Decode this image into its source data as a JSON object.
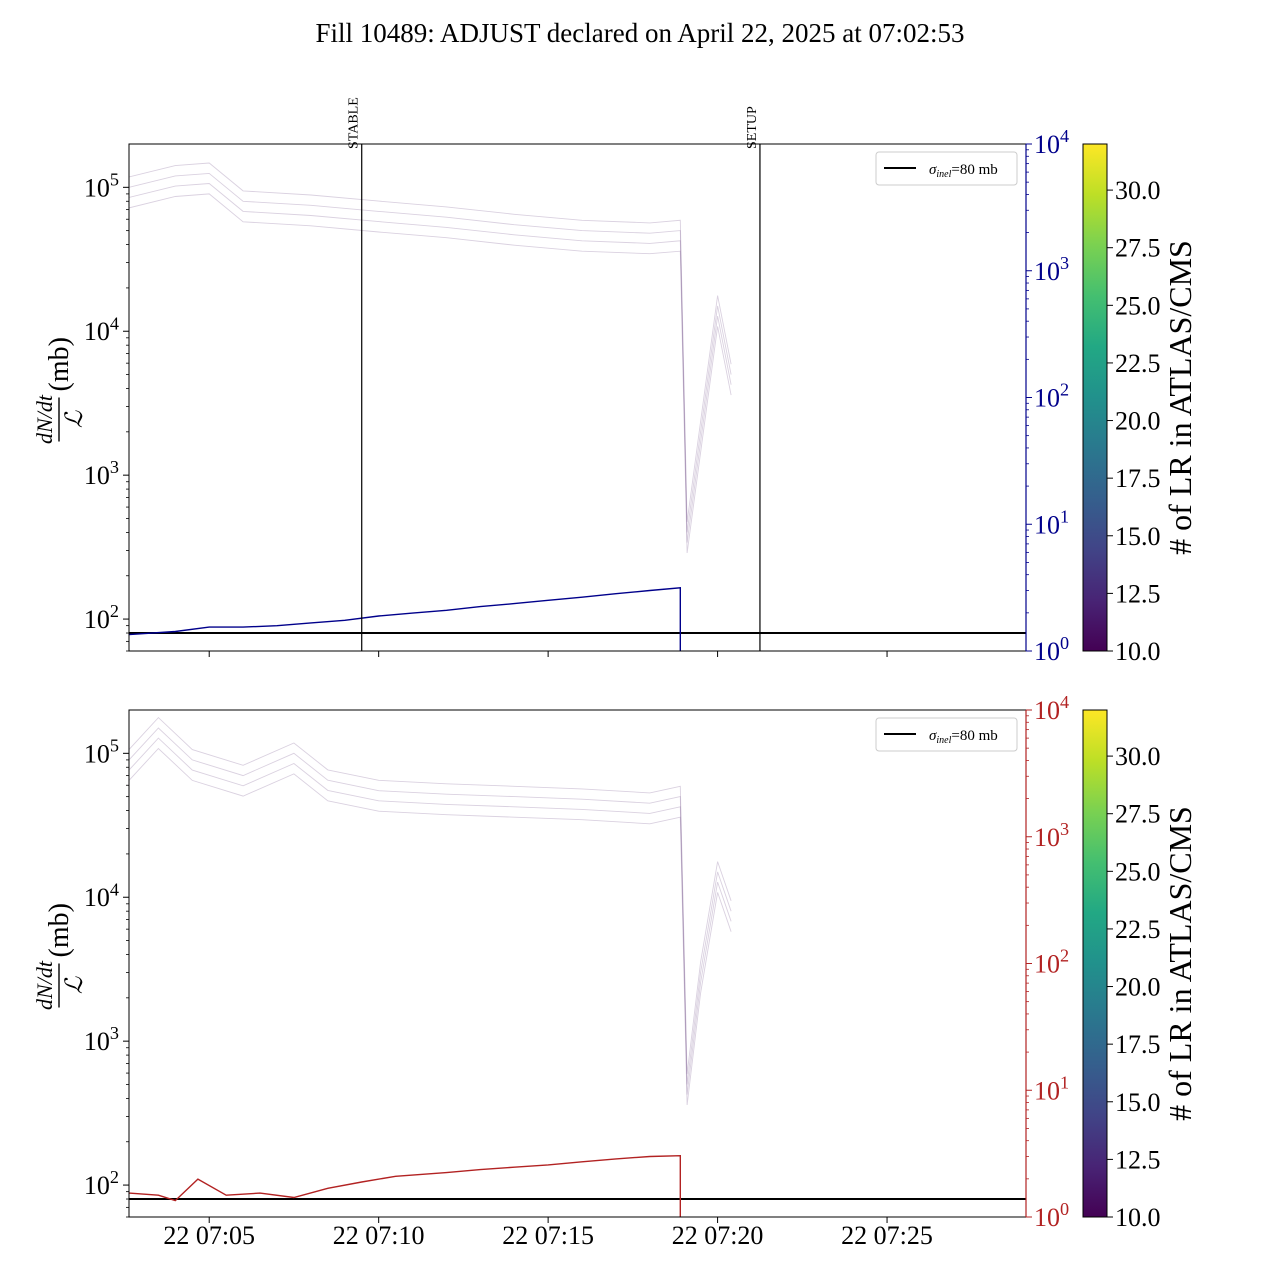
{
  "figure": {
    "title": "Fill 10489: ADJUST declared on April 22, 2025 at 07:02:53"
  },
  "colors": {
    "top_series": "#00008b",
    "bottom_series": "#b22222",
    "background_lines": "#7b5a8f",
    "reference_line": "#000000",
    "colorbar": [
      "#440154",
      "#482475",
      "#414487",
      "#355f8d",
      "#2a788e",
      "#21918c",
      "#22a884",
      "#44bf70",
      "#7ad151",
      "#bddf26",
      "#fde725"
    ]
  },
  "chart_data": [
    {
      "type": "line",
      "panel": "top",
      "ylabel_fraction_num": "dN/dt",
      "ylabel_fraction_den": "ℒ",
      "ylabel_unit": "(mb)",
      "y_scale": "log",
      "ylim": [
        60,
        200000
      ],
      "y_ticks": [
        {
          "base": "10",
          "exp": "2",
          "value": 100
        },
        {
          "base": "10",
          "exp": "3",
          "value": 1000
        },
        {
          "base": "10",
          "exp": "4",
          "value": 10000
        },
        {
          "base": "10",
          "exp": "5",
          "value": 100000
        }
      ],
      "right_axis": {
        "scale": "log",
        "ylim": [
          1,
          10000
        ],
        "ticks": [
          {
            "base": "10",
            "exp": "0",
            "value": 1
          },
          {
            "base": "10",
            "exp": "1",
            "value": 10
          },
          {
            "base": "10",
            "exp": "2",
            "value": 100
          },
          {
            "base": "10",
            "exp": "3",
            "value": 1000
          },
          {
            "base": "10",
            "exp": "4",
            "value": 10000
          }
        ],
        "color": "#00008b"
      },
      "xlim": [
        "07:02:38",
        "07:29:06"
      ],
      "x_tick_labels": [],
      "vlines": [
        {
          "label": "STABLE",
          "time": "07:09:30"
        },
        {
          "label": "SETUP",
          "time": "07:21:15"
        }
      ],
      "reference_line": {
        "value": 80
      },
      "legend": {
        "label_sym": "σ",
        "label_sub": "inel",
        "label_rest": "=80 mb",
        "position": "top-right"
      },
      "main_series": [
        {
          "time": "07:02:38",
          "value": 78
        },
        {
          "time": "07:04:00",
          "value": 82
        },
        {
          "time": "07:05:00",
          "value": 88
        },
        {
          "time": "07:06:00",
          "value": 88
        },
        {
          "time": "07:07:00",
          "value": 90
        },
        {
          "time": "07:08:00",
          "value": 94
        },
        {
          "time": "07:09:00",
          "value": 98
        },
        {
          "time": "07:10:00",
          "value": 105
        },
        {
          "time": "07:11:00",
          "value": 110
        },
        {
          "time": "07:12:00",
          "value": 115
        },
        {
          "time": "07:13:00",
          "value": 122
        },
        {
          "time": "07:14:00",
          "value": 128
        },
        {
          "time": "07:15:00",
          "value": 135
        },
        {
          "time": "07:16:00",
          "value": 142
        },
        {
          "time": "07:17:00",
          "value": 150
        },
        {
          "time": "07:18:00",
          "value": 158
        },
        {
          "time": "07:18:54",
          "value": 165
        }
      ],
      "background_series": [
        {
          "time": "07:02:38",
          "value": 100000
        },
        {
          "time": "07:04:00",
          "value": 120000
        },
        {
          "time": "07:05:00",
          "value": 125000
        },
        {
          "time": "07:06:00",
          "value": 80000
        },
        {
          "time": "07:08:00",
          "value": 75000
        },
        {
          "time": "07:10:00",
          "value": 68000
        },
        {
          "time": "07:12:00",
          "value": 62000
        },
        {
          "time": "07:14:00",
          "value": 55000
        },
        {
          "time": "07:16:00",
          "value": 50000
        },
        {
          "time": "07:18:00",
          "value": 48000
        },
        {
          "time": "07:18:54",
          "value": 50000
        },
        {
          "time": "07:19:06",
          "value": 400
        },
        {
          "time": "07:19:30",
          "value": 2000
        },
        {
          "time": "07:20:00",
          "value": 15000
        },
        {
          "time": "07:20:24",
          "value": 5000
        }
      ]
    },
    {
      "type": "line",
      "panel": "bottom",
      "ylabel_fraction_num": "dN/dt",
      "ylabel_fraction_den": "ℒ",
      "ylabel_unit": "(mb)",
      "y_scale": "log",
      "ylim": [
        60,
        200000
      ],
      "y_ticks": [
        {
          "base": "10",
          "exp": "2",
          "value": 100
        },
        {
          "base": "10",
          "exp": "3",
          "value": 1000
        },
        {
          "base": "10",
          "exp": "4",
          "value": 10000
        },
        {
          "base": "10",
          "exp": "5",
          "value": 100000
        }
      ],
      "right_axis": {
        "scale": "log",
        "ylim": [
          1,
          10000
        ],
        "ticks": [
          {
            "base": "10",
            "exp": "0",
            "value": 1
          },
          {
            "base": "10",
            "exp": "1",
            "value": 10
          },
          {
            "base": "10",
            "exp": "2",
            "value": 100
          },
          {
            "base": "10",
            "exp": "3",
            "value": 1000
          },
          {
            "base": "10",
            "exp": "4",
            "value": 10000
          }
        ],
        "color": "#b22222"
      },
      "xlim": [
        "07:02:38",
        "07:29:06"
      ],
      "x_tick_labels": [
        {
          "label": "22 07:05",
          "time": "07:05:00"
        },
        {
          "label": "22 07:10",
          "time": "07:10:00"
        },
        {
          "label": "22 07:15",
          "time": "07:15:00"
        },
        {
          "label": "22 07:20",
          "time": "07:20:00"
        },
        {
          "label": "22 07:25",
          "time": "07:25:00"
        }
      ],
      "vlines": [],
      "reference_line": {
        "value": 80
      },
      "legend": {
        "label_sym": "σ",
        "label_sub": "inel",
        "label_rest": "=80 mb",
        "position": "top-right"
      },
      "main_series": [
        {
          "time": "07:02:38",
          "value": 88
        },
        {
          "time": "07:03:30",
          "value": 85
        },
        {
          "time": "07:04:00",
          "value": 78
        },
        {
          "time": "07:04:40",
          "value": 110
        },
        {
          "time": "07:05:30",
          "value": 85
        },
        {
          "time": "07:06:30",
          "value": 88
        },
        {
          "time": "07:07:30",
          "value": 82
        },
        {
          "time": "07:08:30",
          "value": 95
        },
        {
          "time": "07:09:30",
          "value": 105
        },
        {
          "time": "07:10:30",
          "value": 115
        },
        {
          "time": "07:12:00",
          "value": 122
        },
        {
          "time": "07:13:00",
          "value": 128
        },
        {
          "time": "07:14:00",
          "value": 133
        },
        {
          "time": "07:15:00",
          "value": 138
        },
        {
          "time": "07:16:00",
          "value": 145
        },
        {
          "time": "07:17:00",
          "value": 152
        },
        {
          "time": "07:18:00",
          "value": 158
        },
        {
          "time": "07:18:54",
          "value": 160
        }
      ],
      "background_series": [
        {
          "time": "07:02:38",
          "value": 90000
        },
        {
          "time": "07:03:30",
          "value": 150000
        },
        {
          "time": "07:04:30",
          "value": 90000
        },
        {
          "time": "07:06:00",
          "value": 70000
        },
        {
          "time": "07:07:30",
          "value": 100000
        },
        {
          "time": "07:08:30",
          "value": 65000
        },
        {
          "time": "07:10:00",
          "value": 55000
        },
        {
          "time": "07:12:00",
          "value": 52000
        },
        {
          "time": "07:14:00",
          "value": 50000
        },
        {
          "time": "07:16:00",
          "value": 48000
        },
        {
          "time": "07:18:00",
          "value": 45000
        },
        {
          "time": "07:18:54",
          "value": 50000
        },
        {
          "time": "07:19:06",
          "value": 500
        },
        {
          "time": "07:19:30",
          "value": 3000
        },
        {
          "time": "07:20:00",
          "value": 15000
        },
        {
          "time": "07:20:24",
          "value": 8000
        }
      ]
    }
  ],
  "colorbars": [
    {
      "label": "# of LR in ATLAS/CMS",
      "range": [
        10.0,
        32.0
      ],
      "ticks": [
        "10.0",
        "12.5",
        "15.0",
        "17.5",
        "20.0",
        "22.5",
        "25.0",
        "27.5",
        "30.0"
      ]
    },
    {
      "label": "# of LR in ATLAS/CMS",
      "range": [
        10.0,
        32.0
      ],
      "ticks": [
        "10.0",
        "12.5",
        "15.0",
        "17.5",
        "20.0",
        "22.5",
        "25.0",
        "27.5",
        "30.0"
      ]
    }
  ]
}
